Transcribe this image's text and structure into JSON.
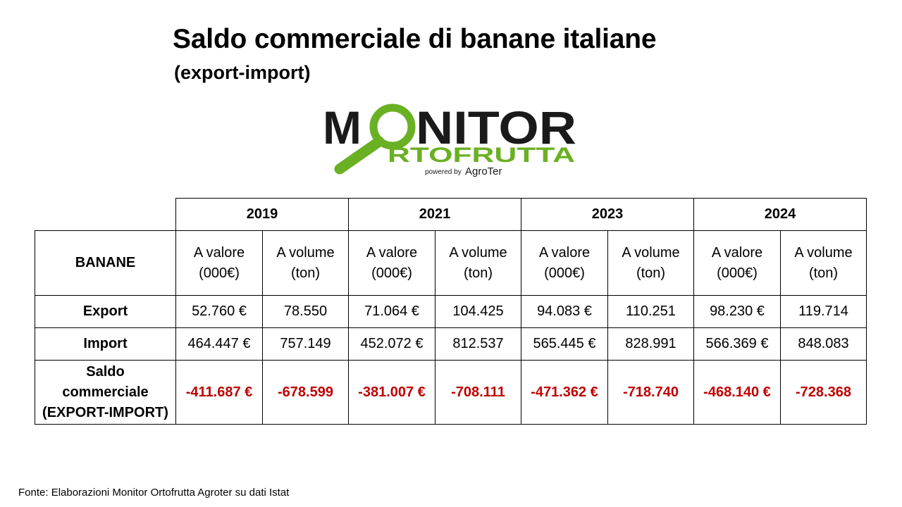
{
  "title": "Saldo commerciale di banane italiane",
  "subtitle": "(export-import)",
  "logo": {
    "line1_left": "M",
    "line1_right": "NITOR",
    "line2": "RTOFRUTTA",
    "tagline_small": "powered by",
    "tagline_brand": "AgroTer",
    "colors": {
      "dark": "#1a1a1a",
      "green": "#6ab023"
    }
  },
  "table": {
    "corner_label": "BANANE",
    "years": [
      "2019",
      "2021",
      "2023",
      "2024"
    ],
    "col_headers": {
      "valore_line1": "A valore",
      "valore_line2": "(000€)",
      "volume_line1": "A volume",
      "volume_line2": "(ton)"
    },
    "rows": {
      "export": {
        "label": "Export",
        "values": [
          "52.760 €",
          "78.550",
          "71.064 €",
          "104.425",
          "94.083 €",
          "110.251",
          "98.230 €",
          "119.714"
        ]
      },
      "import": {
        "label": "Import",
        "values": [
          "464.447 €",
          "757.149",
          "452.072 €",
          "812.537",
          "565.445 €",
          "828.991",
          "566.369 €",
          "848.083"
        ]
      },
      "saldo": {
        "label_line1": "Saldo",
        "label_line2": "commerciale",
        "label_line3": "(EXPORT-IMPORT)",
        "values": [
          "-411.687 €",
          "-678.599",
          "-381.007 €",
          "-708.111",
          "-471.362 €",
          "-718.740",
          "-468.140 €",
          "-728.368"
        ]
      }
    },
    "negative_color": "#C00000"
  },
  "source": "Fonte: Elaborazioni Monitor Ortofrutta Agroter su dati Istat"
}
